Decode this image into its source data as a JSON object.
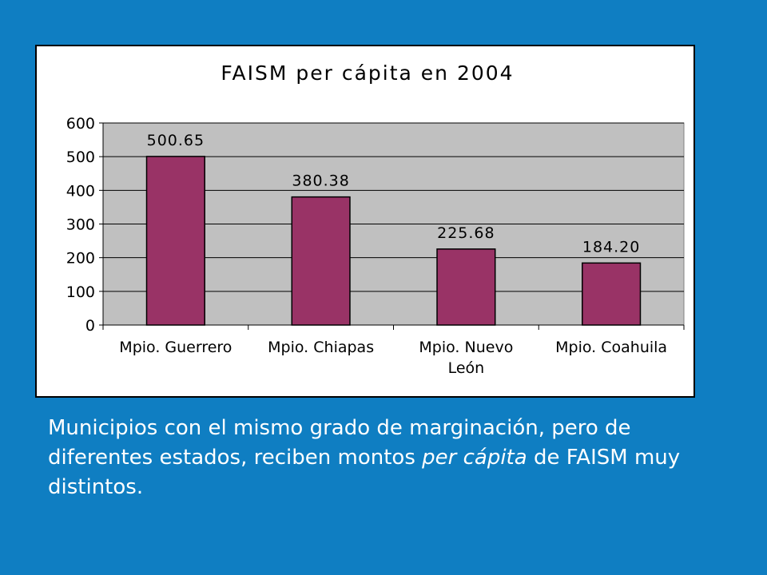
{
  "chart_data": {
    "type": "bar",
    "title": "FAISM per cápita en 2004",
    "categories": [
      [
        "Mpio. Guerrero"
      ],
      [
        "Mpio. Chiapas"
      ],
      [
        "Mpio. Nuevo",
        "León"
      ],
      [
        "Mpio. Coahuila"
      ]
    ],
    "values": [
      500.65,
      380.38,
      225.68,
      184.2
    ],
    "data_labels": [
      "500.65",
      "380.38",
      "225.68",
      "184.20"
    ],
    "ylim": [
      0,
      600
    ],
    "yticks": [
      0,
      100,
      200,
      300,
      400,
      500,
      600
    ],
    "grid": true,
    "legend": "none",
    "colors": {
      "bar": "#993366",
      "plot_bg": "#c0c0c0",
      "panel_bg": "#ffffff",
      "page_bg": "#0f7ec2"
    }
  },
  "caption": {
    "part1": "Municipios con el mismo grado de marginación, pero de diferentes estados, reciben montos ",
    "emphasis": "per cápita",
    "part2": " de FAISM muy distintos."
  }
}
